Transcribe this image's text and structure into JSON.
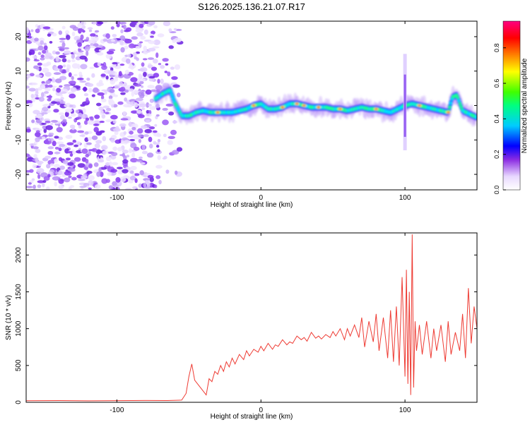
{
  "page": {
    "title": "S126.2025.136.21.07.R17"
  },
  "colors": {
    "snr_line": "#ee3b33",
    "noise_purple": "#9b59f5",
    "axis": "#000000"
  },
  "chart_data": [
    {
      "type": "heatmap",
      "title": "S126.2025.136.21.07.R17",
      "xlabel": "Height of straight line (km)",
      "ylabel": "Frequency (Hz)",
      "xlim": [
        -163,
        150
      ],
      "ylim": [
        -24.5,
        24.5
      ],
      "xticks": [
        -100,
        0,
        100
      ],
      "xtick_labels": [
        "-100",
        "0",
        "100"
      ],
      "yticks": [
        -20,
        -10,
        0,
        10,
        20
      ],
      "ytick_labels": [
        "-20",
        "-10",
        "0",
        "10",
        "20"
      ],
      "colorbar": {
        "label": "Normalized spectral amplitude",
        "range": [
          0.0,
          0.95
        ],
        "ticks": [
          0.0,
          0.2,
          0.4,
          0.6,
          0.8
        ],
        "tick_labels": [
          "0.0",
          "0.2",
          "0.4",
          "0.6",
          "0.8"
        ],
        "colormap": "rainbow (white-violet-blue-cyan-green-yellow-red-magenta)"
      },
      "noise_region": {
        "x_from": -163,
        "x_to": -60,
        "description": "scattered weak amplitude"
      },
      "ridge": {
        "x": [
          -73,
          -68,
          -63,
          -60,
          -55,
          -50,
          -45,
          -40,
          -35,
          -30,
          -25,
          -20,
          -15,
          -10,
          -5,
          0,
          5,
          10,
          15,
          20,
          25,
          30,
          35,
          40,
          45,
          50,
          55,
          60,
          65,
          70,
          75,
          80,
          85,
          90,
          95,
          100,
          105,
          110,
          115,
          120,
          125,
          130,
          133,
          136,
          140,
          145,
          150
        ],
        "y": [
          2,
          3.5,
          4.5,
          1,
          -3,
          -3,
          -2,
          -1.5,
          -2,
          -2,
          -2,
          -2,
          -1.5,
          -1,
          0,
          0.5,
          -1,
          -1,
          -0.5,
          0.5,
          0.5,
          0,
          -0.5,
          -0.5,
          -0.5,
          -1,
          -1,
          -1.5,
          -1,
          -0.5,
          -1,
          -1,
          -1.5,
          -2,
          -1,
          0,
          0.5,
          0,
          -0.5,
          -1,
          -1.5,
          -2,
          2.5,
          3,
          -1.5,
          -2.5,
          -3.5
        ],
        "peak_amplitude_x": [
          -30,
          -5,
          15,
          25,
          30,
          40,
          55,
          80,
          110,
          130
        ]
      },
      "features": [
        {
          "x": 100,
          "y_from": -13,
          "y_to": 15,
          "description": "vertical streak"
        }
      ]
    },
    {
      "type": "line",
      "xlabel": "Height of straight line (km)",
      "ylabel": "SNR (10 * v/v)",
      "xlim": [
        -163,
        150
      ],
      "ylim": [
        0,
        2300
      ],
      "xticks": [
        -100,
        0,
        100
      ],
      "xtick_labels": [
        "-100",
        "0",
        "100"
      ],
      "yticks": [
        0,
        500,
        1000,
        1500,
        2000
      ],
      "ytick_labels": [
        "0",
        "500",
        "1000",
        "1500",
        "2000"
      ],
      "series": [
        {
          "x": [
            -163,
            -140,
            -120,
            -100,
            -80,
            -65,
            -55,
            -52,
            -50,
            -48,
            -46,
            -44,
            -42,
            -40,
            -38,
            -36,
            -34,
            -32,
            -30,
            -28,
            -26,
            -24,
            -22,
            -20,
            -18,
            -15,
            -12,
            -10,
            -8,
            -5,
            -2,
            0,
            2,
            5,
            8,
            10,
            12,
            15,
            18,
            20,
            22,
            25,
            28,
            30,
            32,
            35,
            38,
            40,
            42,
            45,
            48,
            50,
            52,
            55,
            58,
            60,
            62,
            65,
            68,
            70,
            72,
            75,
            78,
            80,
            82,
            85,
            88,
            90,
            92,
            94,
            96,
            98,
            100,
            101,
            102,
            103,
            104,
            105,
            106,
            107,
            108,
            110,
            112,
            115,
            118,
            120,
            122,
            125,
            128,
            130,
            132,
            135,
            138,
            140,
            142,
            144,
            146,
            148,
            150
          ],
          "y": [
            22,
            24,
            20,
            23,
            25,
            24,
            30,
            120,
            350,
            520,
            300,
            250,
            200,
            150,
            100,
            320,
            280,
            420,
            380,
            500,
            420,
            550,
            480,
            600,
            520,
            650,
            580,
            700,
            630,
            720,
            680,
            760,
            700,
            800,
            720,
            780,
            760,
            850,
            780,
            820,
            800,
            900,
            850,
            880,
            830,
            950,
            870,
            900,
            860,
            920,
            880,
            960,
            900,
            1000,
            850,
            1000,
            900,
            1050,
            880,
            1150,
            750,
            1100,
            820,
            1200,
            700,
            1150,
            600,
            1250,
            550,
            1300,
            500,
            1700,
            350,
            1800,
            250,
            1500,
            100,
            2280,
            200,
            1100,
            700,
            1050,
            650,
            1100,
            600,
            1000,
            700,
            1050,
            550,
            1100,
            650,
            950,
            700,
            1200,
            600,
            1550,
            800,
            1300,
            1000
          ]
        }
      ]
    }
  ]
}
